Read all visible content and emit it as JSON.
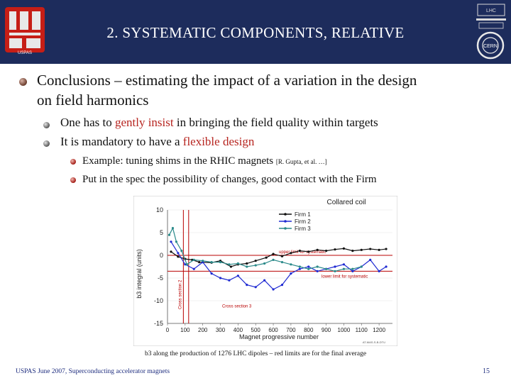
{
  "header": {
    "title": "2. SYSTEMATIC COMPONENTS, RELATIVE",
    "left_logo": "USPAS",
    "right_logo_top": "LHC",
    "right_logo_bottom": "CERN"
  },
  "bullets": {
    "level1": {
      "line1": "Conclusions – estimating the impact of a variation in the design",
      "line2": "on field harmonics"
    },
    "item2": {
      "pre": "One has to ",
      "highlight": "gently insist",
      "post": " in bringing the field quality within targets"
    },
    "item3": {
      "pre": "It is mandatory to have a ",
      "highlight": "flexible design"
    },
    "item4": {
      "text": "Example: tuning shims in the RHIC magnets ",
      "ref": "[R. Gupta, et al. …]"
    },
    "item5": {
      "text": "Put in the spec the possibility of changes, good contact with the Firm"
    }
  },
  "chart_data": {
    "type": "line",
    "title": "Collared coil",
    "xlabel": "Magnet progressive number",
    "ylabel": "b3 integral (units)",
    "xlim": [
      0,
      1276
    ],
    "ylim": [
      -15,
      10
    ],
    "xticks": [
      0,
      100,
      200,
      300,
      400,
      500,
      600,
      700,
      800,
      900,
      1000,
      1100,
      1200
    ],
    "yticks": [
      10,
      5,
      0,
      -5,
      -10,
      -15
    ],
    "legend_position": "top-right",
    "series": [
      {
        "name": "Firm 1",
        "color": "#111111",
        "x": [
          20,
          60,
          100,
          140,
          180,
          250,
          300,
          360,
          400,
          450,
          500,
          560,
          600,
          650,
          700,
          750,
          800,
          850,
          900,
          950,
          1000,
          1050,
          1100,
          1150,
          1200,
          1240
        ],
        "y": [
          0.8,
          -0.3,
          -0.8,
          -1.0,
          -1.5,
          -1.6,
          -1.2,
          -2.5,
          -2.0,
          -1.8,
          -1.2,
          -0.5,
          0.3,
          -0.2,
          0.5,
          1.0,
          0.8,
          1.2,
          1.0,
          1.3,
          1.5,
          1.0,
          1.2,
          1.4,
          1.2,
          1.4
        ]
      },
      {
        "name": "Firm 2",
        "color": "#1f2ad2",
        "x": [
          20,
          60,
          100,
          150,
          200,
          250,
          300,
          350,
          400,
          450,
          500,
          550,
          600,
          650,
          700,
          750,
          800,
          850,
          900,
          950,
          1000,
          1050,
          1100,
          1150,
          1200,
          1240
        ],
        "y": [
          3.0,
          0.5,
          -2.0,
          -3.0,
          -1.5,
          -4.0,
          -5.0,
          -5.5,
          -4.5,
          -6.5,
          -7.0,
          -5.5,
          -7.5,
          -6.5,
          -4.0,
          -3.0,
          -2.5,
          -3.5,
          -3.0,
          -2.5,
          -2.0,
          -3.5,
          -2.5,
          -1.0,
          -3.5,
          -2.5
        ]
      },
      {
        "name": "Firm 3",
        "color": "#2b8a8a",
        "x": [
          10,
          30,
          50,
          80,
          110,
          150,
          200,
          250,
          300,
          350,
          400,
          450,
          500,
          550,
          600,
          650,
          700,
          750,
          800,
          850,
          900,
          950,
          1000,
          1050,
          1100
        ],
        "y": [
          4.5,
          6.0,
          3.0,
          1.0,
          -2.0,
          -1.0,
          -1.2,
          -1.5,
          -1.5,
          -2.0,
          -1.8,
          -2.5,
          -2.2,
          -1.8,
          -1.0,
          -1.5,
          -2.0,
          -2.5,
          -3.0,
          -2.5,
          -3.0,
          -3.5,
          -3.0,
          -3.0,
          -2.5
        ]
      }
    ],
    "limits": [
      {
        "label": "upper limit for systematic",
        "value": 0.0,
        "color": "#b80000"
      },
      {
        "label": "lower limit for systematic",
        "value": -3.5,
        "color": "#b80000"
      }
    ],
    "cross_sections": [
      {
        "label": "Cross section 2",
        "x": 90
      },
      {
        "label": "Cross section 3",
        "x": 120
      }
    ],
    "credit": "AT-MAS-S-B-DTU"
  },
  "caption": "b3 along the production of 1276 LHC dipoles – red limits are for the final average",
  "footer": {
    "text": "USPAS June 2007,  Superconducting accelerator magnets",
    "page": "15"
  }
}
